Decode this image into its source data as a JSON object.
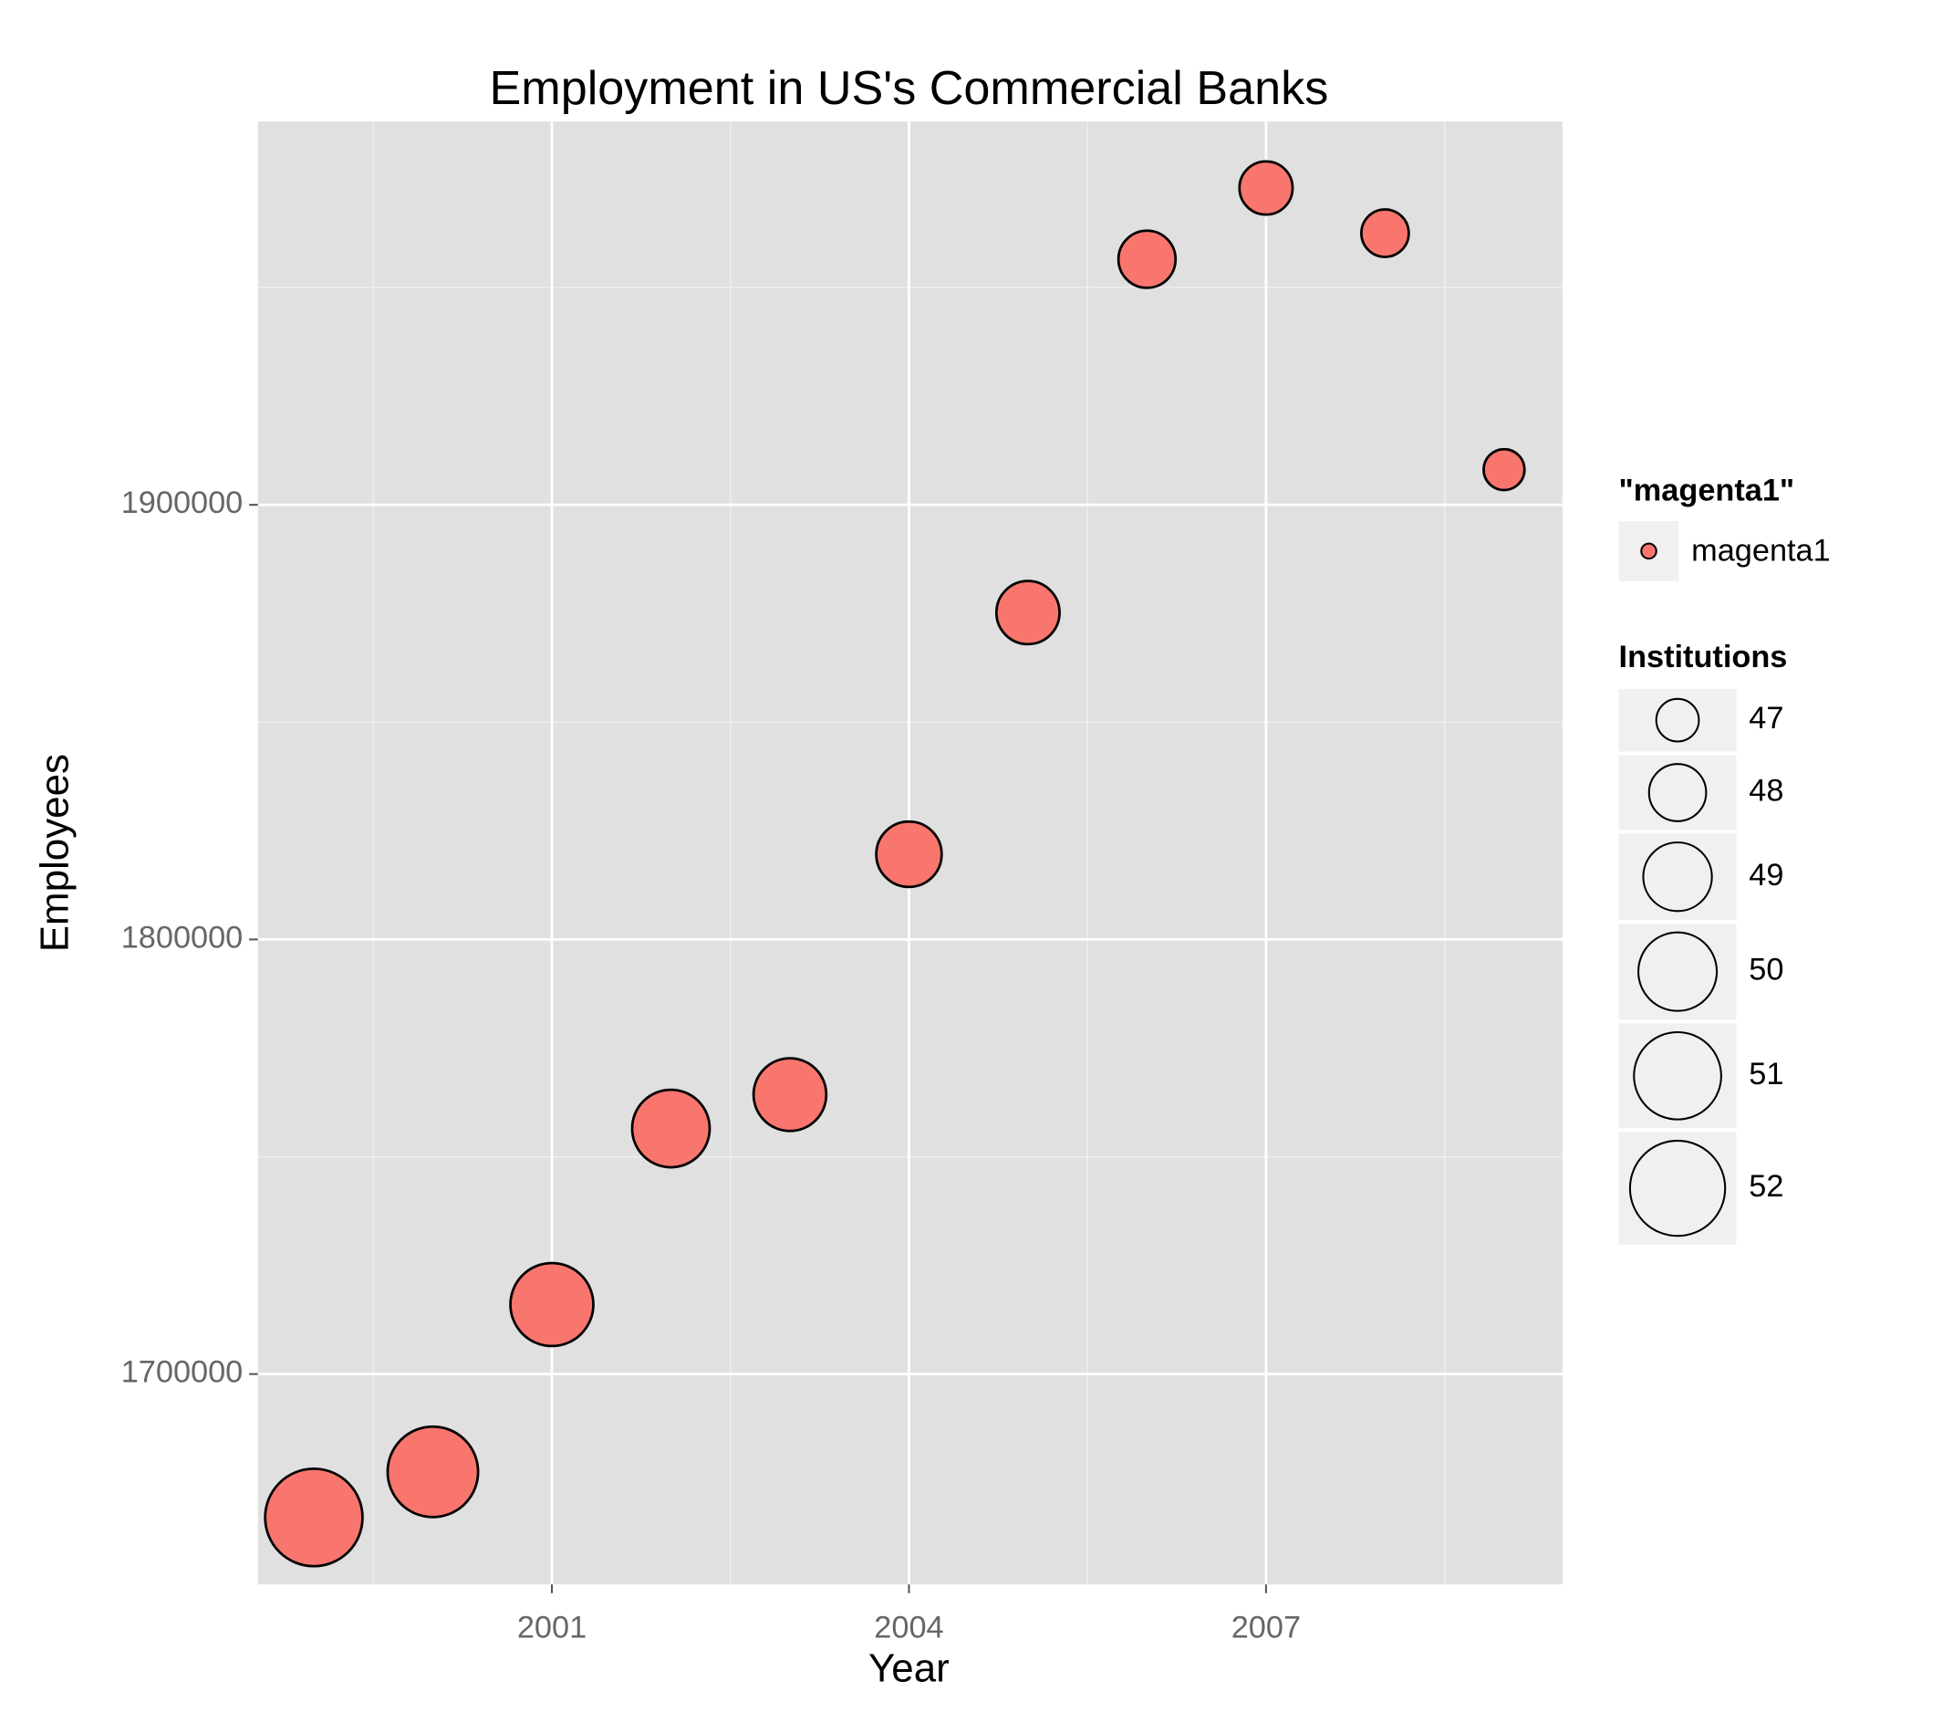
{
  "chart_data": {
    "type": "scatter",
    "title": "Employment in US's Commercial Banks",
    "x_label": "Year",
    "y_label": "Employees",
    "x": [
      1999,
      2000,
      2001,
      2002,
      2003,
      2004,
      2005,
      2006,
      2007,
      2008,
      2009
    ],
    "series": [
      {
        "name": "magenta1",
        "color": "#F8766D",
        "values": [
          1667000,
          1677500,
          1716000,
          1756500,
          1764300,
          1819600,
          1875200,
          1956500,
          1972900,
          1962500,
          1908100
        ],
        "sizes": [
          52.3,
          51.4,
          50.5,
          49.9,
          49.4,
          48.7,
          48.5,
          48.0,
          47.7,
          47.3,
          46.9
        ]
      }
    ],
    "xlim": [
      1998.53,
      2009.49
    ],
    "ylim": [
      1651600,
      1988200
    ],
    "xticks": [
      2001,
      2004,
      2007
    ],
    "yticks": [
      1700000,
      1800000,
      1900000
    ],
    "grid": true,
    "color_legend_title": "\"magenta1\"",
    "size_legend": {
      "title": "Institutions",
      "values": [
        47,
        48,
        49,
        50,
        51,
        52
      ]
    }
  }
}
